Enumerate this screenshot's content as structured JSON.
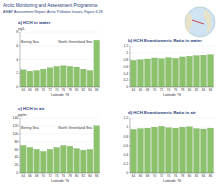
{
  "header": {
    "title": "Arctic Monitoring and Assessment Programme",
    "subtitle": "AMAP Assessment Report: Arctic Pollution Issues, Figure 6.28"
  },
  "chart_data": [
    {
      "type": "bar",
      "title": "a) HCH in water",
      "y_label": "ng/L",
      "x_label": "Latitude °N",
      "categories": [
        "64",
        "66",
        "68",
        "70",
        "72",
        "74",
        "76",
        "78",
        "80",
        "82",
        "84",
        "86"
      ],
      "values": [
        2.5,
        2.3,
        2.4,
        2.6,
        2.8,
        3.0,
        3.1,
        3.0,
        2.9,
        2.6,
        2.4,
        6.8
      ],
      "color": "#8cc26c",
      "ylim": [
        0,
        8
      ],
      "yticks": [
        0,
        2,
        4,
        6,
        8
      ],
      "annotations": [
        "Bering Sea",
        "North Greenland Sea"
      ]
    },
    {
      "type": "bar",
      "title": "b) HCH Enantiomeric Ratio in water",
      "x_label": "Latitude °N",
      "categories": [
        "64",
        "66",
        "68",
        "70",
        "72",
        "74",
        "76",
        "78",
        "80",
        "82",
        "84",
        "86"
      ],
      "values": [
        0.78,
        0.8,
        0.82,
        0.85,
        0.83,
        0.86,
        0.84,
        0.88,
        0.9,
        0.92,
        0.93,
        0.95
      ],
      "color": "#8cc26c",
      "ylim": [
        0,
        1.2
      ],
      "yticks": [
        0,
        0.2,
        0.4,
        0.6,
        0.8,
        1,
        1.2
      ]
    },
    {
      "type": "bar",
      "title": "c) HCH in air",
      "y_label": "pg/m³",
      "x_label": "Latitude °N",
      "categories": [
        "64",
        "66",
        "68",
        "70",
        "72",
        "74",
        "76",
        "78",
        "80",
        "82",
        "84",
        "86"
      ],
      "values": [
        70,
        65,
        60,
        55,
        60,
        65,
        70,
        68,
        62,
        58,
        60,
        120
      ],
      "color": "#8cc26c",
      "ylim": [
        0,
        140
      ],
      "yticks": [
        0,
        20,
        40,
        60,
        80,
        100,
        120,
        140
      ],
      "annotations": [
        "Bering Sea",
        "North Greenland Sea"
      ]
    },
    {
      "type": "bar",
      "title": "d) HCH Enantiomeric Ratio in air",
      "x_label": "Latitude °N",
      "categories": [
        "64",
        "66",
        "68",
        "70",
        "72",
        "74",
        "76",
        "78",
        "80",
        "82",
        "84",
        "86"
      ],
      "values": [
        0.95,
        0.97,
        0.98,
        1.0,
        1.02,
        0.99,
        0.98,
        1.0,
        1.01,
        0.97,
        0.96,
        0.98
      ],
      "color": "#8cc26c",
      "ylim": [
        0,
        1.2
      ],
      "yticks": [
        0,
        0.2,
        0.4,
        0.6,
        0.8,
        1,
        1.2
      ]
    }
  ]
}
